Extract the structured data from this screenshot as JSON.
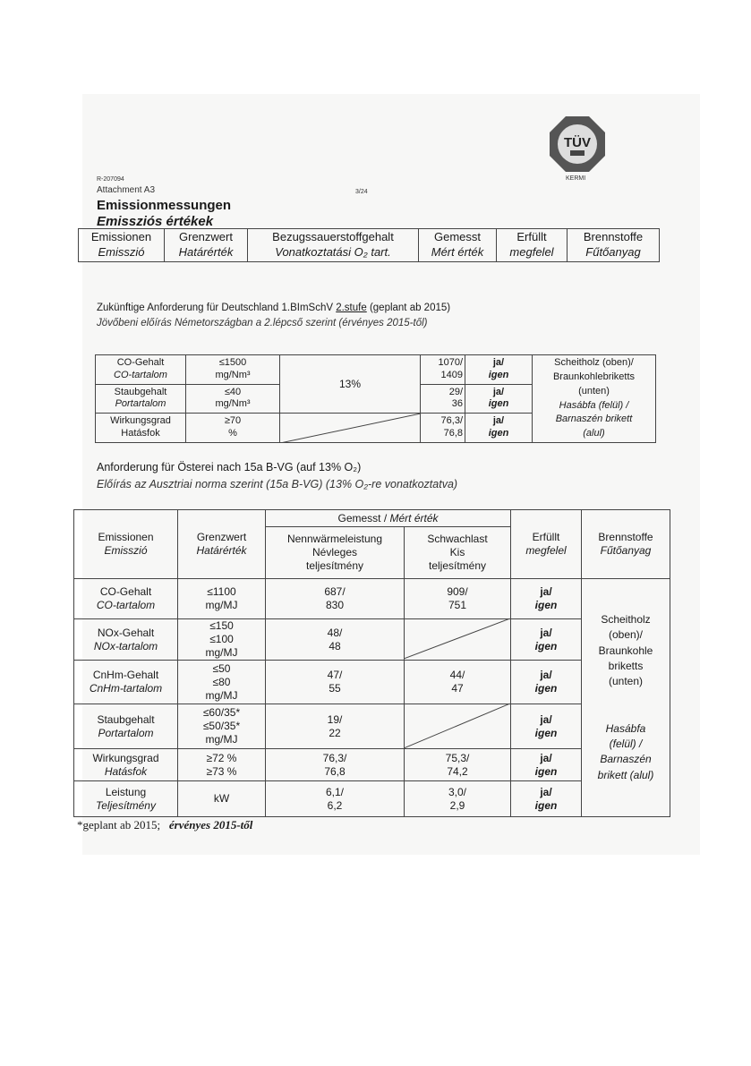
{
  "header": {
    "logo_text": "TÜV",
    "logo_sub": "SÜD",
    "company": "KERMI",
    "report_no": "R-207094",
    "attachment": "Attachment A3",
    "page": "3/24",
    "title_de": "Emissionmessungen",
    "title_hu": "Emissziós értékek"
  },
  "legend_table": {
    "columns": [
      {
        "de": "Emissionen",
        "hu": "Emisszió"
      },
      {
        "de": "Grenzwert",
        "hu": "Határérték"
      },
      {
        "de": "Bezugssauerstoffgehalt",
        "hu": "Vonatkoztatási O₂ tart."
      },
      {
        "de": "Gemesst",
        "hu": "Mért érték"
      },
      {
        "de": "Erfüllt",
        "hu": "megfelel"
      },
      {
        "de": "Brennstoffe",
        "hu": "Fűtőanyag"
      }
    ]
  },
  "germany": {
    "caption_de_pre": "Zukünftige Anforderung für Deutschland 1.BImSchV ",
    "caption_de_underlined": "2.stufe",
    "caption_de_post": " (geplant ab 2015)",
    "caption_hu": "Jövőbeni előírás Németországban a 2.lépcső szerint (érvényes 2015-től)",
    "oxygen": "13%",
    "fuel": {
      "l1": "Scheitholz (oben)/",
      "l2": "Braunkohlebriketts",
      "l3": "(unten)",
      "l4": "Hasábfa (felül) /",
      "l5": "Barnaszén brikett",
      "l6": "(alul)"
    },
    "rows": [
      {
        "de": "CO-Gehalt",
        "hu": "CO-tartalom",
        "limit": "≤1500",
        "unit": "mg/Nm³",
        "measured1": "1070/",
        "measured2": "1409",
        "ok_de": "ja/",
        "ok_hu": "igen"
      },
      {
        "de": "Staubgehalt",
        "hu": "Portartalom",
        "limit": "≤40",
        "unit": "mg/Nm³",
        "measured1": "29/",
        "measured2": "36",
        "ok_de": "ja/",
        "ok_hu": "igen"
      },
      {
        "de": "Wirkungsgrad",
        "hu": "Hatásfok",
        "limit": "≥70",
        "unit": "%",
        "measured1": "76,3/",
        "measured2": "76,8",
        "ok_de": "ja/",
        "ok_hu": "igen"
      }
    ]
  },
  "austria": {
    "caption_de": "Anforderung für Österei nach 15a B-VG (auf 13% O₂)",
    "caption_hu": "Előírás az Ausztriai norma szerint (15a B-VG) (13% O₂-re vonatkoztatva)",
    "head": {
      "emis_de": "Emissionen",
      "emis_hu": "Emisszió",
      "limit_de": "Grenzwert",
      "limit_hu": "Határérték",
      "measured_de": "Gemesst / ",
      "measured_hu": "Mért érték",
      "nominal_de": "Nennwärmeleistung",
      "nominal_hu1": "Névleges",
      "nominal_hu2": "teljesítmény",
      "partial_de": "Schwachlast",
      "partial_hu1": "Kis",
      "partial_hu2": "teljesítmény",
      "ok_de": "Erfüllt",
      "ok_hu": "megfelel",
      "fuel_de": "Brennstoffe",
      "fuel_hu": "Fűtőanyag"
    },
    "fuel": {
      "de1": "Scheitholz",
      "de2": "(oben)/",
      "de3": "Braunkohle",
      "de4": "briketts",
      "de5": "(unten)",
      "hu1": "Hasábfa",
      "hu2": "(felül) /",
      "hu3": "Barnaszén",
      "hu4": "brikett (alul)"
    },
    "rows": [
      {
        "de": "CO-Gehalt",
        "hu": "CO-tartalom",
        "limit": [
          "≤1100",
          "mg/MJ"
        ],
        "nominal": [
          "687/",
          "830"
        ],
        "partial": [
          "909/",
          "751"
        ],
        "ok_de": "ja/",
        "ok_hu": "igen"
      },
      {
        "de": "NOx-Gehalt",
        "hu": "NOx-tartalom",
        "limit": [
          "≤150",
          "≤100",
          "mg/MJ"
        ],
        "nominal": [
          "48/",
          "48"
        ],
        "partial": null,
        "ok_de": "ja/",
        "ok_hu": "igen"
      },
      {
        "de": "CnHm-Gehalt",
        "hu": "CnHm-tartalom",
        "limit": [
          "≤50",
          "≤80",
          "mg/MJ"
        ],
        "nominal": [
          "47/",
          "55"
        ],
        "partial": [
          "44/",
          "47"
        ],
        "ok_de": "ja/",
        "ok_hu": "igen"
      },
      {
        "de": "Staubgehalt",
        "hu": "Portartalom",
        "limit": [
          "≤60/35*",
          "≤50/35*",
          "mg/MJ"
        ],
        "nominal": [
          "19/",
          "22"
        ],
        "partial": null,
        "ok_de": "ja/",
        "ok_hu": "igen"
      },
      {
        "de": "Wirkungsgrad",
        "hu": "Hatásfok",
        "limit": [
          "≥72 %",
          "≥73 %"
        ],
        "nominal": [
          "76,3/",
          "76,8"
        ],
        "partial": [
          "75,3/",
          "74,2"
        ],
        "ok_de": "ja/",
        "ok_hu": "igen"
      },
      {
        "de": "Leistung",
        "hu": "Teljesítmény",
        "limit": [
          "kW"
        ],
        "nominal": [
          "6,1/",
          "6,2"
        ],
        "partial": [
          "3,0/",
          "2,9"
        ],
        "ok_de": "ja/",
        "ok_hu": "igen"
      }
    ],
    "footnote_de": "*geplant ab 2015;",
    "footnote_hu": "érvényes 2015-től"
  }
}
